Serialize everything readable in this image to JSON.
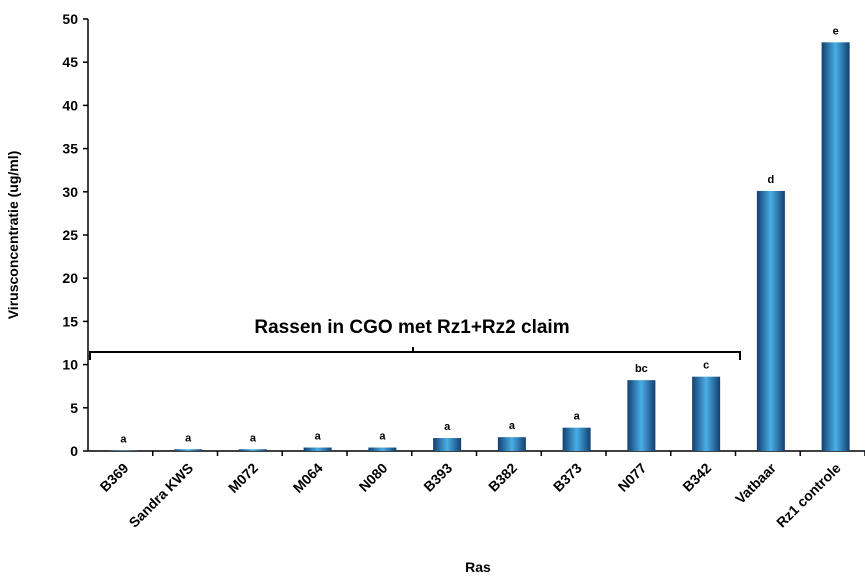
{
  "chart_data": {
    "type": "bar",
    "categories": [
      "B369",
      "Sandra KWS",
      "M072",
      "M064",
      "N080",
      "B393",
      "B382",
      "B373",
      "N077",
      "B342",
      "Vatbaar",
      "Rz1 controle"
    ],
    "values": [
      0.05,
      0.2,
      0.2,
      0.4,
      0.4,
      1.5,
      1.6,
      2.7,
      8.2,
      8.6,
      30.1,
      47.3
    ],
    "letters": [
      "a",
      "a",
      "a",
      "a",
      "a",
      "a",
      "a",
      "a",
      "bc",
      "c",
      "d",
      "e"
    ],
    "color": "#2a7fc4",
    "ylim": [
      0,
      50
    ],
    "yticks": [
      0,
      5,
      10,
      15,
      20,
      25,
      30,
      35,
      40,
      45,
      50
    ],
    "ylabel": "Virusconcentratie (ug/ml)",
    "xlabel": "Ras",
    "annotation": "Rassen in CGO met Rz1+Rz2 claim",
    "grid": false
  }
}
